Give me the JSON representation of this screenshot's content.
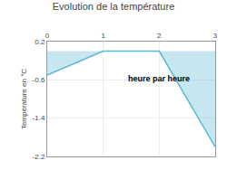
{
  "chart_data": {
    "type": "area",
    "title": "Evolution de la température",
    "ylabel": "Température en °C",
    "x": [
      0,
      1,
      2,
      3
    ],
    "values": [
      -0.5,
      0.0,
      0.0,
      -2.0
    ],
    "color": "#5bb8d4",
    "xlim": [
      0,
      3
    ],
    "ylim": [
      -2.2,
      0.2
    ],
    "xticks": [
      0,
      1,
      2,
      3
    ],
    "yticks": [
      -2.2,
      -1.4,
      -0.6,
      0.2
    ],
    "grid": true,
    "annotations": [
      {
        "text": "heure par heure",
        "x": 2.0,
        "y": -0.45
      }
    ]
  }
}
